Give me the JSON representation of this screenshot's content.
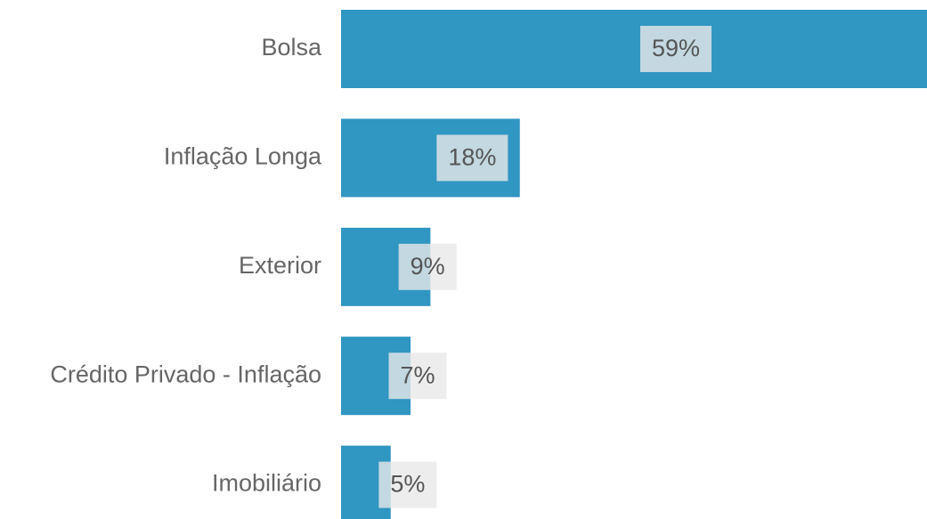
{
  "chart_data": {
    "type": "hbar",
    "categories": [
      "Bolsa",
      "Inflação Longa",
      "Exterior",
      "Crédito Privado - Inflação",
      "Imobiliário"
    ],
    "values": [
      59,
      18,
      9,
      7,
      5
    ],
    "value_labels": [
      "59%",
      "18%",
      "9%",
      "7%",
      "5%"
    ],
    "color": "#3096c2"
  }
}
